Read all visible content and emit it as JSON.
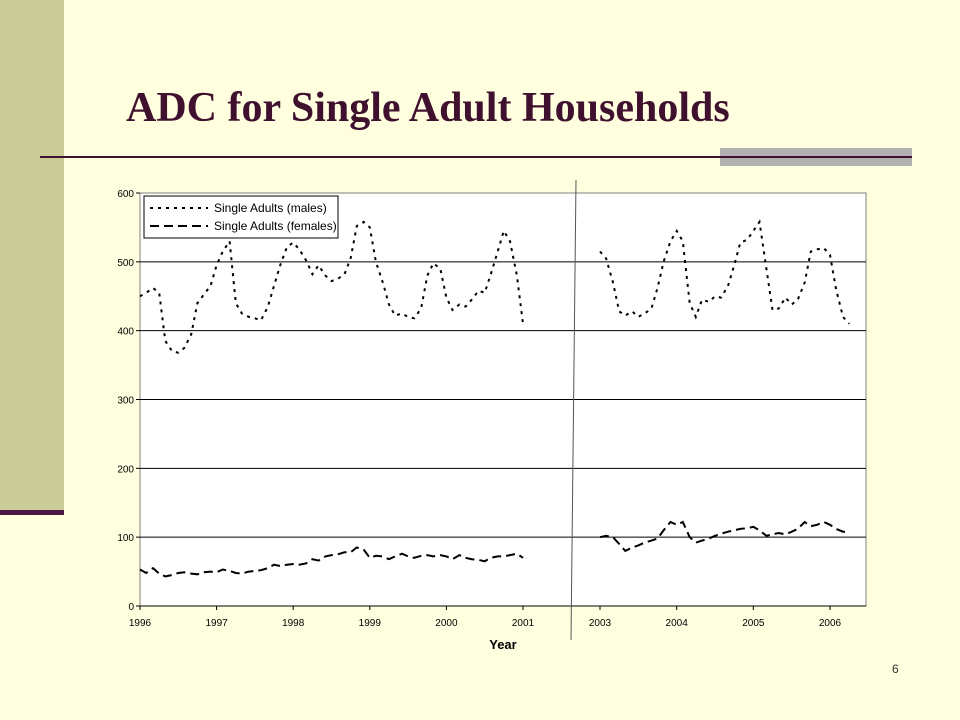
{
  "slide": {
    "title": "ADC for Single Adult Households",
    "page_number": "6"
  },
  "colors": {
    "background": "#FFFFE0",
    "sidebar": "#CCCC99",
    "title": "#40102F",
    "accent_gray": "#B2B2B2"
  },
  "chart_data": {
    "type": "line",
    "title": "",
    "xlabel": "Year",
    "ylabel": "",
    "ylim": [
      0,
      600
    ],
    "yticks": [
      "0",
      "100",
      "200",
      "300",
      "400",
      "500",
      "600"
    ],
    "xticks": [
      "1996",
      "1997",
      "1998",
      "1999",
      "2000",
      "2001",
      "2003",
      "2004",
      "2005",
      "2006"
    ],
    "grid": "horizontal",
    "legend_position": "top-left",
    "note": "",
    "series": [
      {
        "name": "Single Adults (males)",
        "style": "dotted",
        "values": [
          [
            1996.0,
            450
          ],
          [
            1996.08,
            455
          ],
          [
            1996.17,
            462
          ],
          [
            1996.25,
            455
          ],
          [
            1996.33,
            385
          ],
          [
            1996.42,
            370
          ],
          [
            1996.5,
            368
          ],
          [
            1996.58,
            375
          ],
          [
            1996.67,
            395
          ],
          [
            1996.75,
            440
          ],
          [
            1996.83,
            452
          ],
          [
            1996.92,
            465
          ],
          [
            1997.0,
            495
          ],
          [
            1997.08,
            515
          ],
          [
            1997.17,
            530
          ],
          [
            1997.25,
            440
          ],
          [
            1997.33,
            425
          ],
          [
            1997.42,
            420
          ],
          [
            1997.5,
            418
          ],
          [
            1997.58,
            415
          ],
          [
            1997.67,
            435
          ],
          [
            1997.75,
            465
          ],
          [
            1997.83,
            495
          ],
          [
            1997.92,
            522
          ],
          [
            1998.0,
            528
          ],
          [
            1998.08,
            518
          ],
          [
            1998.17,
            502
          ],
          [
            1998.25,
            482
          ],
          [
            1998.33,
            495
          ],
          [
            1998.42,
            480
          ],
          [
            1998.5,
            472
          ],
          [
            1998.58,
            475
          ],
          [
            1998.67,
            482
          ],
          [
            1998.75,
            505
          ],
          [
            1998.83,
            552
          ],
          [
            1998.92,
            558
          ],
          [
            1999.0,
            550
          ],
          [
            1999.08,
            500
          ],
          [
            1999.17,
            470
          ],
          [
            1999.25,
            438
          ],
          [
            1999.33,
            422
          ],
          [
            1999.42,
            425
          ],
          [
            1999.5,
            420
          ],
          [
            1999.58,
            418
          ],
          [
            1999.67,
            432
          ],
          [
            1999.75,
            480
          ],
          [
            1999.83,
            498
          ],
          [
            1999.92,
            490
          ],
          [
            2000.0,
            448
          ],
          [
            2000.08,
            430
          ],
          [
            2000.17,
            438
          ],
          [
            2000.25,
            435
          ],
          [
            2000.33,
            445
          ],
          [
            2000.42,
            458
          ],
          [
            2000.5,
            455
          ],
          [
            2000.58,
            482
          ],
          [
            2000.67,
            515
          ],
          [
            2000.75,
            545
          ],
          [
            2000.83,
            530
          ],
          [
            2000.92,
            480
          ],
          [
            2001.0,
            410
          ]
        ],
        "values_2": [
          [
            2003.0,
            515
          ],
          [
            2003.08,
            505
          ],
          [
            2003.17,
            470
          ],
          [
            2003.25,
            428
          ],
          [
            2003.33,
            422
          ],
          [
            2003.42,
            428
          ],
          [
            2003.5,
            420
          ],
          [
            2003.58,
            425
          ],
          [
            2003.67,
            432
          ],
          [
            2003.75,
            462
          ],
          [
            2003.83,
            500
          ],
          [
            2003.92,
            530
          ],
          [
            2004.0,
            545
          ],
          [
            2004.08,
            530
          ],
          [
            2004.17,
            440
          ],
          [
            2004.25,
            420
          ],
          [
            2004.33,
            445
          ],
          [
            2004.42,
            442
          ],
          [
            2004.5,
            450
          ],
          [
            2004.58,
            448
          ],
          [
            2004.67,
            465
          ],
          [
            2004.75,
            495
          ],
          [
            2004.83,
            528
          ],
          [
            2004.92,
            532
          ],
          [
            2005.0,
            545
          ],
          [
            2005.08,
            558
          ],
          [
            2005.17,
            490
          ],
          [
            2005.25,
            430
          ],
          [
            2005.33,
            432
          ],
          [
            2005.42,
            448
          ],
          [
            2005.5,
            438
          ],
          [
            2005.58,
            445
          ],
          [
            2005.67,
            470
          ],
          [
            2005.75,
            515
          ],
          [
            2005.83,
            518
          ],
          [
            2005.92,
            520
          ],
          [
            2006.0,
            510
          ],
          [
            2006.08,
            460
          ],
          [
            2006.17,
            420
          ],
          [
            2006.25,
            410
          ]
        ]
      },
      {
        "name": "Single Adults (females)",
        "style": "dashed",
        "values": [
          [
            1996.0,
            53
          ],
          [
            1996.08,
            48
          ],
          [
            1996.17,
            55
          ],
          [
            1996.25,
            47
          ],
          [
            1996.33,
            43
          ],
          [
            1996.42,
            45
          ],
          [
            1996.5,
            48
          ],
          [
            1996.58,
            49
          ],
          [
            1996.67,
            47
          ],
          [
            1996.75,
            46
          ],
          [
            1996.83,
            49
          ],
          [
            1996.92,
            50
          ],
          [
            1997.0,
            49
          ],
          [
            1997.08,
            53
          ],
          [
            1997.17,
            51
          ],
          [
            1997.25,
            48
          ],
          [
            1997.33,
            47
          ],
          [
            1997.42,
            50
          ],
          [
            1997.5,
            51
          ],
          [
            1997.58,
            52
          ],
          [
            1997.67,
            55
          ],
          [
            1997.75,
            60
          ],
          [
            1997.83,
            58
          ],
          [
            1997.92,
            60
          ],
          [
            1998.0,
            61
          ],
          [
            1998.08,
            60
          ],
          [
            1998.17,
            62
          ],
          [
            1998.25,
            68
          ],
          [
            1998.33,
            66
          ],
          [
            1998.42,
            72
          ],
          [
            1998.5,
            74
          ],
          [
            1998.58,
            75
          ],
          [
            1998.67,
            78
          ],
          [
            1998.75,
            78
          ],
          [
            1998.83,
            85
          ],
          [
            1998.92,
            82
          ],
          [
            1999.0,
            70
          ],
          [
            1999.08,
            73
          ],
          [
            1999.17,
            72
          ],
          [
            1999.25,
            68
          ],
          [
            1999.33,
            72
          ],
          [
            1999.42,
            76
          ],
          [
            1999.5,
            72
          ],
          [
            1999.58,
            70
          ],
          [
            1999.67,
            73
          ],
          [
            1999.75,
            74
          ],
          [
            1999.83,
            72
          ],
          [
            1999.92,
            74
          ],
          [
            2000.0,
            72
          ],
          [
            2000.08,
            68
          ],
          [
            2000.17,
            74
          ],
          [
            2000.25,
            70
          ],
          [
            2000.33,
            68
          ],
          [
            2000.42,
            67
          ],
          [
            2000.5,
            65
          ],
          [
            2000.58,
            70
          ],
          [
            2000.67,
            72
          ],
          [
            2000.75,
            72
          ],
          [
            2000.83,
            74
          ],
          [
            2000.92,
            76
          ],
          [
            2001.0,
            70
          ]
        ],
        "values_2": [
          [
            2003.0,
            100
          ],
          [
            2003.08,
            102
          ],
          [
            2003.17,
            100
          ],
          [
            2003.25,
            90
          ],
          [
            2003.33,
            80
          ],
          [
            2003.42,
            85
          ],
          [
            2003.5,
            88
          ],
          [
            2003.58,
            92
          ],
          [
            2003.67,
            95
          ],
          [
            2003.75,
            98
          ],
          [
            2003.83,
            110
          ],
          [
            2003.92,
            122
          ],
          [
            2004.0,
            118
          ],
          [
            2004.08,
            122
          ],
          [
            2004.17,
            100
          ],
          [
            2004.25,
            92
          ],
          [
            2004.33,
            95
          ],
          [
            2004.42,
            98
          ],
          [
            2004.5,
            102
          ],
          [
            2004.58,
            105
          ],
          [
            2004.67,
            108
          ],
          [
            2004.75,
            110
          ],
          [
            2004.83,
            112
          ],
          [
            2004.92,
            113
          ],
          [
            2005.0,
            115
          ],
          [
            2005.08,
            110
          ],
          [
            2005.17,
            102
          ],
          [
            2005.25,
            104
          ],
          [
            2005.33,
            106
          ],
          [
            2005.42,
            104
          ],
          [
            2005.5,
            108
          ],
          [
            2005.58,
            112
          ],
          [
            2005.67,
            122
          ],
          [
            2005.75,
            116
          ],
          [
            2005.83,
            118
          ],
          [
            2005.92,
            122
          ],
          [
            2006.0,
            118
          ],
          [
            2006.08,
            112
          ],
          [
            2006.17,
            108
          ],
          [
            2006.25,
            108
          ]
        ]
      }
    ]
  }
}
